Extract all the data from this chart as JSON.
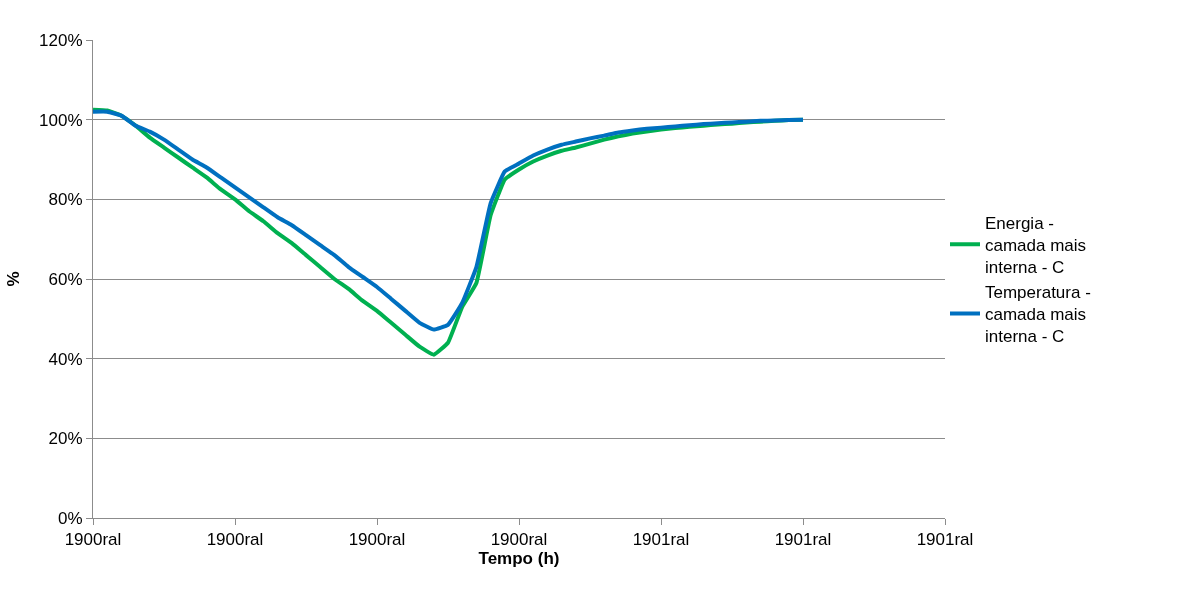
{
  "chart_data": {
    "type": "line",
    "xlabel": "Tempo (h)",
    "ylabel": "%",
    "categories": [
      "1900ral",
      null,
      null,
      null,
      null,
      null,
      null,
      null,
      null,
      null,
      "1900ral",
      null,
      null,
      null,
      null,
      null,
      null,
      null,
      null,
      null,
      "1900ral",
      null,
      null,
      null,
      null,
      null,
      null,
      null,
      null,
      null,
      "1900ral",
      null,
      null,
      null,
      null,
      null,
      null,
      null,
      null,
      null,
      "1901ral",
      null,
      null,
      null,
      null,
      null,
      null,
      null,
      null,
      null,
      "1901ral",
      null,
      null,
      null,
      null,
      null,
      null,
      null,
      null,
      null,
      "1901ral"
    ],
    "ylim": [
      0,
      120
    ],
    "yticks": [
      {
        "value": 0,
        "label": "0%"
      },
      {
        "value": 20,
        "label": "20%"
      },
      {
        "value": 40,
        "label": "40%"
      },
      {
        "value": 60,
        "label": "60%"
      },
      {
        "value": 80,
        "label": "80%"
      },
      {
        "value": 100,
        "label": "100%"
      },
      {
        "value": 120,
        "label": "120%"
      }
    ],
    "grid": "y",
    "legend": "right",
    "marker": "none",
    "line_style": "solid",
    "series": [
      {
        "name": "Energia - camada mais interna - C",
        "color": "#00b050",
        "values": [
          102.5,
          102.3,
          101,
          98.5,
          95.5,
          93,
          90.5,
          88,
          85.5,
          82.5,
          80,
          77,
          74.5,
          71.5,
          69,
          66,
          63,
          60,
          57.5,
          54.5,
          52,
          49,
          46,
          43,
          41,
          44,
          53,
          59,
          76,
          85,
          87.5,
          89.5,
          91,
          92.2,
          93,
          94,
          95,
          95.8,
          96.5,
          97,
          97.5,
          97.9,
          98.2,
          98.5,
          98.8,
          99,
          99.3,
          99.5,
          99.7,
          99.9,
          100,
          null,
          null,
          null,
          null,
          null,
          null,
          null,
          null,
          null,
          null
        ]
      },
      {
        "name": "Temperatura - camada mais interna - C",
        "color": "#0070c0",
        "values": [
          102,
          102,
          101,
          98.5,
          97,
          95,
          92.5,
          90,
          88,
          85.5,
          83,
          80.5,
          78,
          75.5,
          73.5,
          71,
          68.5,
          66,
          63,
          60.5,
          58,
          55,
          52,
          49,
          47.3,
          48.5,
          54,
          63,
          79,
          87,
          89,
          91,
          92.5,
          93.7,
          94.5,
          95.3,
          96,
          96.8,
          97.3,
          97.7,
          98,
          98.3,
          98.6,
          98.9,
          99.1,
          99.3,
          99.5,
          99.7,
          99.8,
          99.9,
          100,
          null,
          null,
          null,
          null,
          null,
          null,
          null,
          null,
          null,
          null
        ]
      }
    ]
  }
}
